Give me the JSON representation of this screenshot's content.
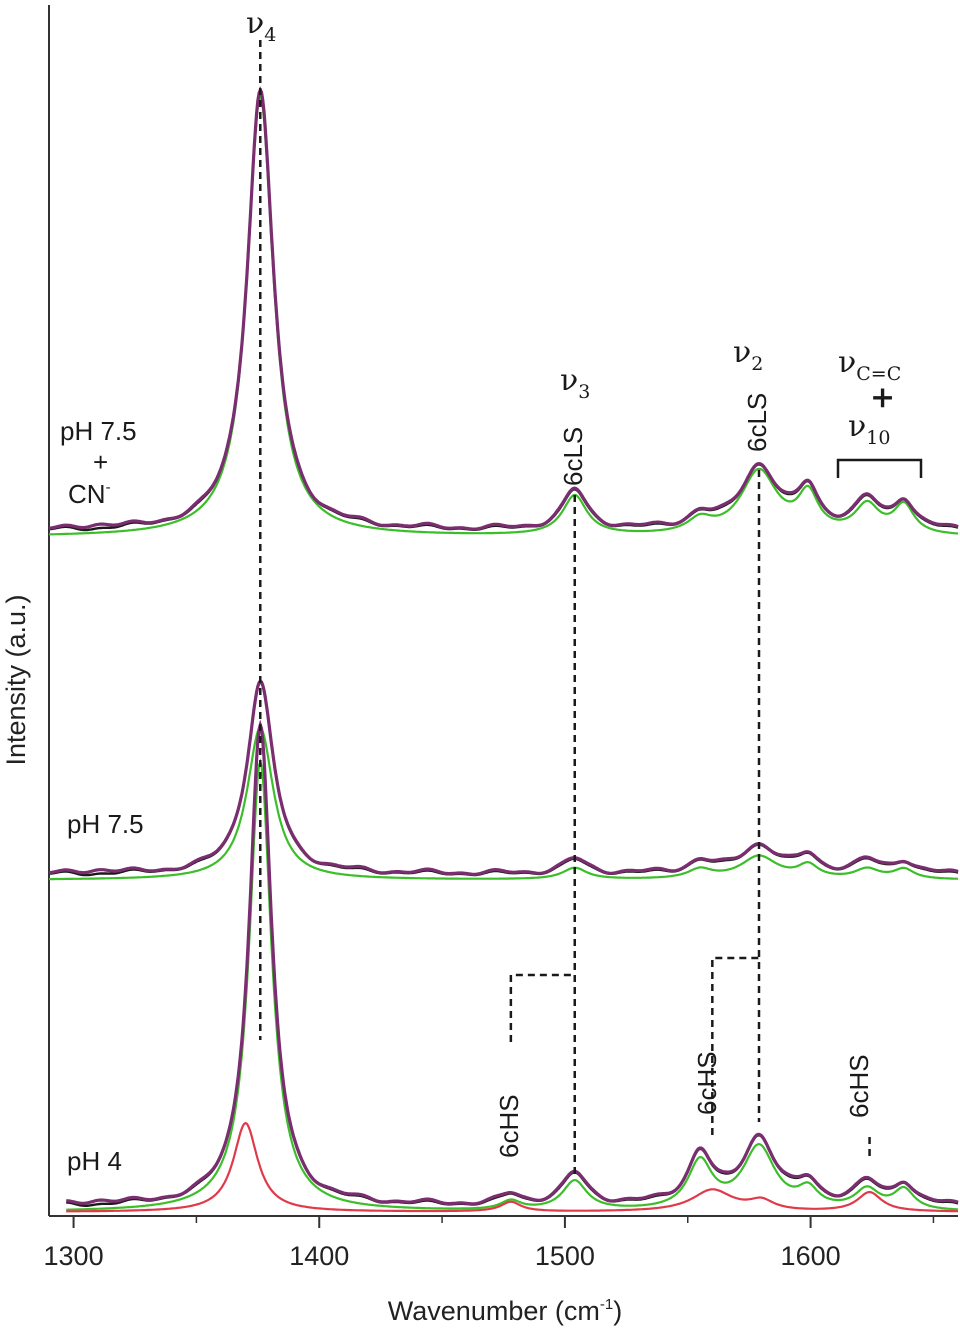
{
  "chart_data": {
    "type": "line",
    "xlabel": "Wavenumber (cm",
    "xlabel_exp": "-1",
    "xlabel_close": ")",
    "ylabel": "Intensity (a.u.)",
    "xlim": [
      1290,
      1660
    ],
    "x_ticks": [
      1300,
      1400,
      1500,
      1600
    ],
    "y_ticks": "none",
    "grid": false,
    "colors": {
      "experimental": "#1a1a1a",
      "fit": "#7a2e70",
      "component_6cLS": "#3cbe2a",
      "component_6cHS": "#e03a4a"
    },
    "traces": [
      {
        "label_line1": "pH 7.5",
        "label_line2": "+",
        "label_line3": "CN",
        "label_line3_sup": "-",
        "peaks": [
          {
            "x": 1376,
            "h": 1.0,
            "w": 6.5
          },
          {
            "x": 1504,
            "h": 0.09,
            "w": 6
          },
          {
            "x": 1555,
            "h": 0.03,
            "w": 6
          },
          {
            "x": 1579,
            "h": 0.145,
            "w": 9
          },
          {
            "x": 1599,
            "h": 0.085,
            "w": 5
          },
          {
            "x": 1623,
            "h": 0.065,
            "w": 6
          },
          {
            "x": 1638,
            "h": 0.065,
            "w": 5
          }
        ]
      },
      {
        "label_line1": "pH 7.5",
        "peaks": [
          {
            "x": 1376,
            "h": 1.0,
            "w": 6.5
          },
          {
            "x": 1504,
            "h": 0.075,
            "w": 6
          },
          {
            "x": 1555,
            "h": 0.06,
            "w": 6
          },
          {
            "x": 1579,
            "h": 0.15,
            "w": 9
          },
          {
            "x": 1599,
            "h": 0.085,
            "w": 5
          },
          {
            "x": 1623,
            "h": 0.065,
            "w": 6
          },
          {
            "x": 1638,
            "h": 0.065,
            "w": 5
          }
        ]
      },
      {
        "label_line1": "pH 4",
        "peaks": [
          {
            "x": 1376,
            "h": 1.0,
            "w": 5.5
          },
          {
            "x": 1478,
            "h": 0.02,
            "w": 5
          },
          {
            "x": 1504,
            "h": 0.065,
            "w": 6
          },
          {
            "x": 1555,
            "h": 0.105,
            "w": 6
          },
          {
            "x": 1579,
            "h": 0.14,
            "w": 8
          },
          {
            "x": 1599,
            "h": 0.04,
            "w": 5
          },
          {
            "x": 1623,
            "h": 0.045,
            "w": 6
          },
          {
            "x": 1638,
            "h": 0.045,
            "w": 5
          }
        ],
        "hs_peaks": [
          {
            "x": 1370,
            "h": 0.185,
            "w": 6
          },
          {
            "x": 1478,
            "h": 0.02,
            "w": 5
          },
          {
            "x": 1560,
            "h": 0.045,
            "w": 10
          },
          {
            "x": 1580,
            "h": 0.02,
            "w": 6
          },
          {
            "x": 1624,
            "h": 0.04,
            "w": 6
          }
        ]
      }
    ],
    "annotations": {
      "nu4": {
        "symbol": "ν",
        "sub": "4"
      },
      "nu3": {
        "symbol": "ν",
        "sub": "3"
      },
      "nu2": {
        "symbol": "ν",
        "sub": "2"
      },
      "nuCC": {
        "symbol": "ν",
        "sub": "C=C"
      },
      "plus": "+",
      "nu10": {
        "symbol": "ν",
        "sub": "10"
      },
      "lsA": "6cLS",
      "lsB": "6cLS",
      "hsA": "6cHS",
      "hsB": "6cHS",
      "hsC": "6cHS"
    }
  }
}
